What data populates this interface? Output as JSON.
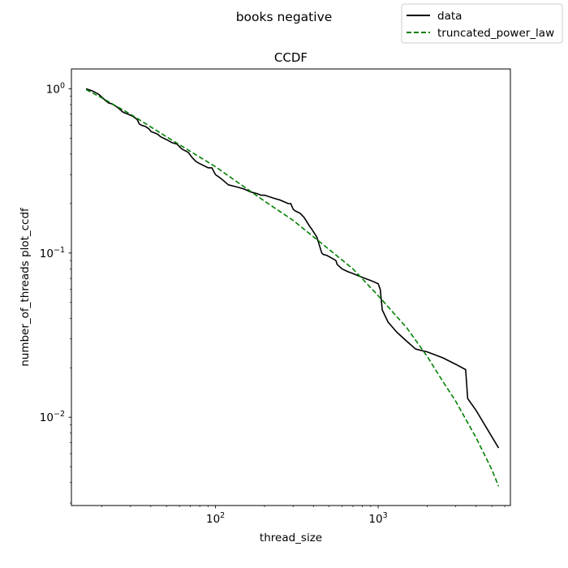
{
  "figure": {
    "suptitle": "books negative"
  },
  "chart_data": {
    "type": "line",
    "title": "CCDF",
    "xlabel": "thread_size",
    "ylabel": "number_of_threads plot_ccdf",
    "xscale": "log",
    "yscale": "log",
    "xlim": [
      13,
      6500
    ],
    "ylim": [
      0.0029,
      1.32
    ],
    "grid": false,
    "legend_position": "top-right outside plot",
    "xticks": [
      {
        "value": 100,
        "base": "10",
        "exp": "2"
      },
      {
        "value": 1000,
        "base": "10",
        "exp": "3"
      }
    ],
    "yticks": [
      {
        "value": 1,
        "base": "10",
        "exp": "0"
      },
      {
        "value": 0.1,
        "base": "10",
        "exp": "−1"
      },
      {
        "value": 0.01,
        "base": "10",
        "exp": "−2"
      }
    ],
    "series": [
      {
        "name": "data",
        "color": "#000000",
        "style": "solid",
        "x": [
          16,
          17.5,
          19,
          20,
          21,
          22,
          23,
          24,
          25,
          27,
          29,
          31,
          33,
          34,
          35,
          37,
          39,
          40,
          42,
          44,
          46,
          50,
          54,
          58,
          62,
          65,
          68,
          72,
          76,
          80,
          85,
          90,
          95,
          100,
          105,
          110,
          120,
          130,
          140,
          150,
          165,
          180,
          190,
          200,
          230,
          250,
          280,
          290,
          300,
          310,
          330,
          350,
          380,
          390,
          420,
          450,
          460,
          480,
          500,
          550,
          560,
          600,
          650,
          700,
          800,
          900,
          1000,
          1030,
          1060,
          1150,
          1300,
          1500,
          1700,
          2000,
          2500,
          3000,
          3450,
          3550,
          4000,
          5500
        ],
        "y": [
          1.0,
          0.97,
          0.93,
          0.89,
          0.85,
          0.82,
          0.81,
          0.79,
          0.77,
          0.72,
          0.7,
          0.68,
          0.65,
          0.61,
          0.6,
          0.59,
          0.57,
          0.55,
          0.54,
          0.53,
          0.51,
          0.49,
          0.47,
          0.46,
          0.43,
          0.42,
          0.41,
          0.38,
          0.36,
          0.35,
          0.34,
          0.33,
          0.33,
          0.3,
          0.29,
          0.28,
          0.26,
          0.255,
          0.25,
          0.245,
          0.235,
          0.23,
          0.225,
          0.225,
          0.215,
          0.21,
          0.2,
          0.2,
          0.185,
          0.18,
          0.175,
          0.165,
          0.145,
          0.14,
          0.125,
          0.1,
          0.098,
          0.097,
          0.095,
          0.09,
          0.085,
          0.08,
          0.077,
          0.075,
          0.071,
          0.068,
          0.065,
          0.06,
          0.045,
          0.038,
          0.033,
          0.029,
          0.026,
          0.025,
          0.023,
          0.021,
          0.0195,
          0.013,
          0.011,
          0.0065
        ]
      },
      {
        "name": "truncated_power_law",
        "color": "#008000",
        "style": "dashed",
        "x": [
          16,
          20,
          30,
          50,
          100,
          200,
          300,
          500,
          700,
          1000,
          1500,
          2000,
          2500,
          3000,
          3500,
          4000,
          5000,
          5500
        ],
        "y": [
          0.99,
          0.88,
          0.7,
          0.51,
          0.335,
          0.207,
          0.158,
          0.105,
          0.08,
          0.055,
          0.035,
          0.0235,
          0.0165,
          0.0125,
          0.0095,
          0.0075,
          0.0048,
          0.0038
        ]
      }
    ]
  }
}
